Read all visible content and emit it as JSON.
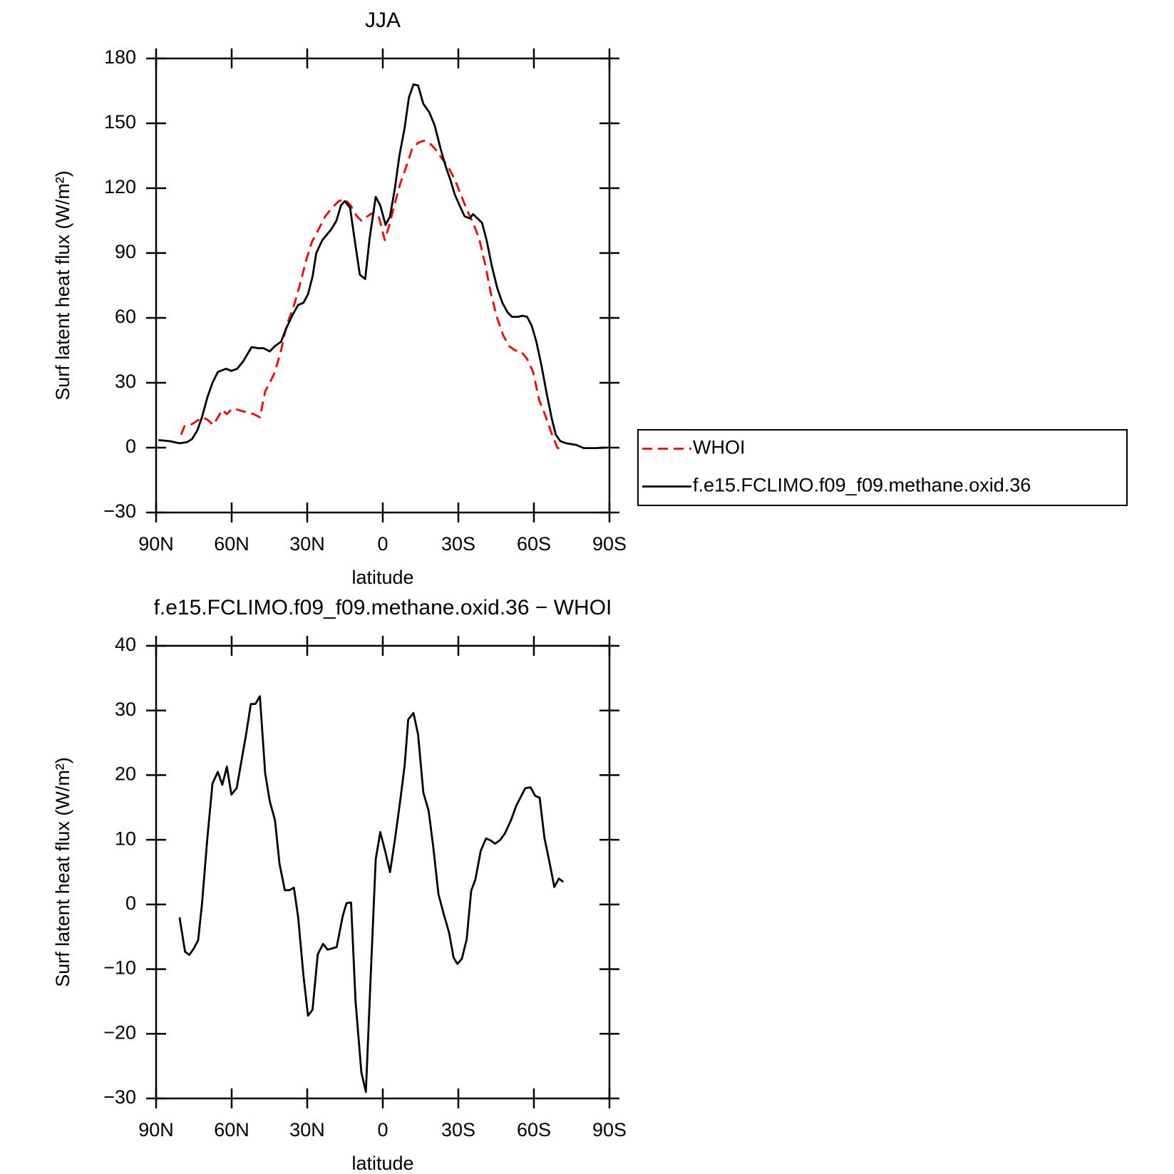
{
  "chart_data": [
    {
      "type": "line",
      "title": "JJA",
      "xlabel": "latitude",
      "ylabel": "Surf latent heat flux (W/m²)",
      "xlim": [
        90,
        -90
      ],
      "xticks": [
        {
          "value": 90,
          "label": "90N"
        },
        {
          "value": 60,
          "label": "60N"
        },
        {
          "value": 30,
          "label": "30N"
        },
        0,
        {
          "value": -30,
          "label": "30S"
        },
        {
          "value": -60,
          "label": "60S"
        },
        {
          "value": -90,
          "label": "90S"
        }
      ],
      "ylim": [
        -30,
        180
      ],
      "yticks": [
        {
          "value": -30,
          "label": "−30"
        },
        0,
        30,
        60,
        90,
        120,
        150,
        180
      ],
      "legend": "right",
      "series": [
        {
          "name": "WHOI",
          "color": "#ff0000",
          "dash": true,
          "x": [
            80.1,
            78.7,
            76.3,
            74.2,
            71.8,
            69.7,
            67.3,
            65.5,
            63.7,
            61.9,
            59.8,
            57.5,
            54.5,
            51.2,
            48.8,
            46.7,
            44.9,
            42.8,
            40.4,
            38.1,
            35.7,
            33,
            30.3,
            28.2,
            25.5,
            22.8,
            20.1,
            17.5,
            15.1,
            12.7,
            10.3,
            8.5,
            6.1,
            3.4,
            1.6,
            -0.8,
            -2.6,
            -4.8,
            -6.9,
            -9.3,
            -11.6,
            -14,
            -16.4,
            -18.5,
            -20.9,
            -23.3,
            -25.9,
            -28.6,
            -31,
            -33.4,
            -35.8,
            -38.2,
            -40.6,
            -43,
            -45.4,
            -47.8,
            -50.1,
            -52.5,
            -54.9,
            -57.3,
            -59.7,
            -62.1,
            -64.5,
            -66.9,
            -69.3,
            -71.4
          ],
          "values": [
            6,
            10,
            10.5,
            12,
            14,
            13,
            10.5,
            14,
            17.5,
            15.5,
            18,
            17.5,
            16.5,
            15.5,
            14,
            26,
            30,
            35,
            45,
            57,
            64,
            75,
            87,
            95,
            101,
            107,
            111,
            114,
            115,
            112,
            107,
            105,
            107,
            109,
            107,
            96,
            103,
            113,
            122,
            130,
            138,
            141,
            142,
            141,
            138,
            134,
            130,
            124,
            117,
            110,
            104,
            97,
            85,
            71,
            60,
            52,
            47,
            45,
            44.5,
            41,
            35,
            22,
            15,
            7,
            0,
            -1.5
          ]
        },
        {
          "name": "f.e15.FCLIMO.f09_f09.methane.oxid.36",
          "color": "#000000",
          "dash": false,
          "x": [
            89.1,
            84.6,
            80.7,
            77.8,
            75.7,
            73.6,
            71.8,
            69.7,
            67.6,
            65.5,
            62.2,
            60.1,
            57.8,
            55.4,
            52.1,
            49.4,
            47.3,
            44.9,
            42.8,
            40.4,
            38.4,
            36,
            33.6,
            31.5,
            29.7,
            27.9,
            26.4,
            24,
            20.4,
            18.4,
            16.6,
            15.1,
            13,
            10.9,
            9.1,
            7,
            5.2,
            2.8,
            1,
            -1.1,
            -2.9,
            -4.8,
            -6.6,
            -8.7,
            -10.4,
            -12.2,
            -14,
            -16.1,
            -18.5,
            -20.6,
            -23,
            -25,
            -26.8,
            -28.6,
            -30.5,
            -32.5,
            -34.6,
            -35.8,
            -37.6,
            -39.4,
            -41.2,
            -43.3,
            -45.4,
            -47.5,
            -49.6,
            -51.3,
            -53.7,
            -55.5,
            -57.3,
            -59.1,
            -61,
            -63,
            -65.1,
            -67.2,
            -68.7,
            -70.5,
            -72.9,
            -76.8,
            -78.3,
            -79.8,
            -84.3,
            -88.8
          ],
          "values": [
            3.5,
            3,
            2,
            2.5,
            4,
            8,
            14,
            23,
            30,
            35,
            36.5,
            35.5,
            36.5,
            40,
            46.5,
            46,
            46,
            44.5,
            47,
            49,
            55,
            61,
            66,
            67,
            71,
            79,
            90,
            96,
            101,
            105,
            112,
            114,
            111,
            94,
            80,
            78,
            97,
            116,
            112,
            103,
            107,
            120,
            135,
            148,
            162,
            168,
            167.5,
            159,
            155,
            149,
            138,
            130,
            124,
            117,
            112,
            107,
            106,
            108,
            106,
            104,
            96,
            84,
            74,
            67,
            62.5,
            60.5,
            60.5,
            61,
            60.5,
            56.5,
            49,
            38,
            25,
            13,
            6,
            3,
            2,
            1.3,
            0.5,
            -0.2,
            -0.2,
            0
          ]
        }
      ]
    },
    {
      "type": "line",
      "title": "f.e15.FCLIMO.f09_f09.methane.oxid.36 − WHOI",
      "xlabel": "latitude",
      "ylabel": "Surf latent heat flux (W/m²)",
      "xlim": [
        90,
        -90
      ],
      "xticks": [
        {
          "value": 90,
          "label": "90N"
        },
        {
          "value": 60,
          "label": "60N"
        },
        {
          "value": 30,
          "label": "30N"
        },
        0,
        {
          "value": -30,
          "label": "30S"
        },
        {
          "value": -60,
          "label": "60S"
        },
        {
          "value": -90,
          "label": "90S"
        }
      ],
      "ylim": [
        -30,
        40
      ],
      "yticks": [
        {
          "value": -30,
          "label": "−30"
        },
        {
          "value": -20,
          "label": "−20"
        },
        {
          "value": -10,
          "label": "−10"
        },
        0,
        10,
        20,
        30,
        40
      ],
      "color": "#000000",
      "x": [
        80.7,
        78.5,
        76.8,
        75,
        73.3,
        71.8,
        69.7,
        67.6,
        65.5,
        63.7,
        61.9,
        60.1,
        58,
        56.2,
        54.4,
        52.4,
        50.6,
        48.8,
        46.7,
        44.9,
        42.8,
        41,
        38.9,
        37.1,
        35.3,
        33.6,
        31.5,
        29.7,
        27.9,
        25.8,
        23.7,
        21.9,
        18.3,
        15.9,
        14.4,
        12.6,
        10.8,
        8.5,
        6.7,
        4.9,
        2.8,
        1,
        -1.1,
        -2.9,
        -4.8,
        -6.9,
        -8.7,
        -10.1,
        -12.2,
        -14,
        -16.1,
        -18.2,
        -20,
        -22.1,
        -24.2,
        -26.3,
        -28.1,
        -29.6,
        -31.4,
        -33.3,
        -35.1,
        -36.8,
        -38.9,
        -41,
        -42.8,
        -44.6,
        -46.7,
        -48.5,
        -50.9,
        -53,
        -56.6,
        -58.7,
        -60.5,
        -62.3,
        -64.2,
        -66.3,
        -68.1,
        -69.9,
        -71.7
      ],
      "values": [
        -2,
        -7.3,
        -7.8,
        -6.8,
        -5.5,
        0,
        10,
        18.7,
        20.5,
        18.5,
        21.3,
        17,
        18,
        22,
        26,
        31,
        31,
        32.2,
        20.3,
        16,
        13,
        6.3,
        2.2,
        2.2,
        2.6,
        -2,
        -11,
        -17.2,
        -16.3,
        -7.7,
        -6.1,
        -7,
        -6.6,
        -1.8,
        0.2,
        0.3,
        -15,
        -26,
        -29,
        -12,
        7,
        11.2,
        8,
        5,
        10,
        16,
        21.5,
        28.6,
        29.6,
        26.3,
        17.3,
        14.5,
        9,
        1.6,
        -1.5,
        -4.3,
        -8.2,
        -9.2,
        -8.4,
        -5.4,
        2.1,
        3.9,
        8.3,
        10.2,
        9.9,
        9.4,
        10,
        11,
        13,
        15.3,
        18,
        18.1,
        16.8,
        16.5,
        10.3,
        6.3,
        2.7,
        4,
        3.5
      ]
    }
  ]
}
